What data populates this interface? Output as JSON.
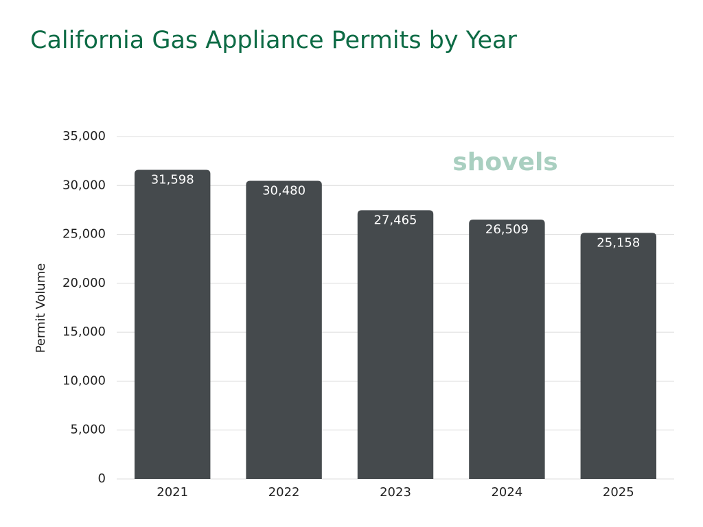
{
  "chart_data": {
    "type": "bar",
    "title": "California Gas Appliance Permits by Year",
    "y_label": "Permit Volume",
    "watermark": "shovels",
    "categories": [
      "2021",
      "2022",
      "2023",
      "2024",
      "2025"
    ],
    "values": [
      31598,
      30480,
      27465,
      26509,
      25158
    ],
    "value_labels": [
      "31,598",
      "30,480",
      "27,465",
      "26,509",
      "25,158"
    ],
    "color": "#454a4d",
    "ylim": [
      0,
      35000
    ],
    "yticks": [
      0,
      {
        "value": 5000,
        "label": "5,000"
      },
      {
        "value": 10000,
        "label": "10,000"
      },
      {
        "value": 15000,
        "label": "15,000"
      },
      {
        "value": 20000,
        "label": "20,000"
      },
      {
        "value": 25000,
        "label": "25,000"
      },
      {
        "value": 30000,
        "label": "30,000"
      },
      {
        "value": 35000,
        "label": "35,000"
      }
    ],
    "grid": true
  }
}
